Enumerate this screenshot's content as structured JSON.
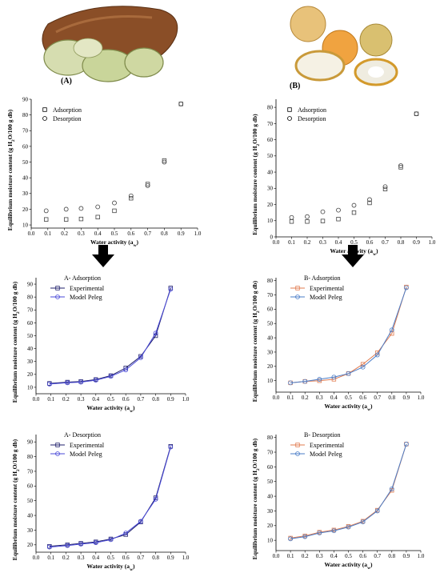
{
  "photos": {
    "left_label": "(A)",
    "right_label": "(B)"
  },
  "colors": {
    "experimental": "#e07b4f",
    "model_peleg": "#4a7cc7",
    "experimental_left": "#1f1f6b",
    "model_left": "#4a4ad8",
    "arrow": "#000000"
  },
  "chart_data": [
    {
      "id": "A-isotherms",
      "type": "scatter",
      "title": "",
      "xlabel": "Water activity (aw)",
      "ylabel": "Equilibrium moisture content (g H2O/100 g db)",
      "xlim": [
        0.0,
        1.0
      ],
      "ylim": [
        8,
        90
      ],
      "xticks": [
        "0.0",
        "0.1",
        "0.2",
        "0.3",
        "0.4",
        "0.5",
        "0.6",
        "0.7",
        "0.8",
        "0.9",
        "1.0"
      ],
      "yticks": [
        10,
        20,
        30,
        40,
        50,
        60,
        70,
        80,
        90
      ],
      "legend_position": "top-left",
      "series": [
        {
          "name": "Adsorption",
          "marker": "square",
          "x": [
            0.09,
            0.21,
            0.3,
            0.4,
            0.5,
            0.6,
            0.7,
            0.8,
            0.9
          ],
          "y": [
            13.5,
            13.5,
            13.8,
            15,
            19,
            27,
            36,
            51,
            87
          ]
        },
        {
          "name": "Desorption",
          "marker": "circle",
          "x": [
            0.09,
            0.21,
            0.3,
            0.4,
            0.5,
            0.6,
            0.7,
            0.8,
            0.9
          ],
          "y": [
            19,
            20,
            20.5,
            21.5,
            24,
            28.5,
            35,
            50,
            87
          ]
        }
      ]
    },
    {
      "id": "B-isotherms",
      "type": "scatter",
      "title": "",
      "xlabel": "Water activity (aw)",
      "ylabel": "Equilibrium moisture content (g H2O/100 g db)",
      "xlim": [
        0.0,
        1.0
      ],
      "ylim": [
        0,
        85
      ],
      "xticks": [
        "0.0",
        "0.1",
        "0.2",
        "0.3",
        "0.4",
        "0.5",
        "0.6",
        "0.7",
        "0.8",
        "0.9",
        "1.0"
      ],
      "yticks": [
        0,
        10,
        20,
        30,
        40,
        50,
        60,
        70,
        80
      ],
      "legend_position": "top-left",
      "series": [
        {
          "name": "Adsorption",
          "marker": "square",
          "x": [
            0.1,
            0.2,
            0.3,
            0.4,
            0.5,
            0.6,
            0.7,
            0.8,
            0.9
          ],
          "y": [
            9.5,
            9.5,
            9.8,
            11,
            15,
            21,
            29.5,
            43,
            76
          ]
        },
        {
          "name": "Desorption",
          "marker": "circle",
          "x": [
            0.1,
            0.2,
            0.3,
            0.4,
            0.5,
            0.6,
            0.7,
            0.8,
            0.9
          ],
          "y": [
            12,
            12.5,
            15.5,
            16.5,
            19.5,
            23,
            31,
            44,
            76
          ]
        }
      ]
    },
    {
      "id": "A-adsorption-peleg",
      "type": "line",
      "title": "A- Adsorption",
      "xlabel": "Water activity (aw)",
      "ylabel": "Equilibrium moisture content (g H2O/100 g db)",
      "xlim": [
        0.0,
        1.0
      ],
      "ylim": [
        5,
        95
      ],
      "xticks": [
        "0.0",
        "0.1",
        "0.2",
        "0.3",
        "0.4",
        "0.5",
        "0.6",
        "0.7",
        "0.8",
        "0.9",
        "1.0"
      ],
      "yticks": [
        10,
        20,
        30,
        40,
        50,
        60,
        70,
        80,
        90
      ],
      "legend_position": "top-left",
      "series": [
        {
          "name": "Experimental",
          "marker": "square",
          "x": [
            0.09,
            0.21,
            0.3,
            0.4,
            0.5,
            0.6,
            0.7,
            0.8,
            0.9
          ],
          "y": [
            13,
            14,
            14.5,
            16,
            19,
            25,
            34,
            50,
            87
          ]
        },
        {
          "name": "Model Peleg",
          "marker": "circle",
          "x": [
            0.09,
            0.21,
            0.3,
            0.4,
            0.5,
            0.6,
            0.7,
            0.8,
            0.9
          ],
          "y": [
            12.5,
            13.5,
            14,
            15.5,
            18.5,
            23.5,
            33,
            52,
            86
          ]
        }
      ]
    },
    {
      "id": "B-adsorption-peleg",
      "type": "line",
      "title": "B- Adsorption",
      "xlabel": "Water activity (aw)",
      "ylabel": "Equilibrium moisture content (g H2O/100 g db)",
      "xlim": [
        0.0,
        1.0
      ],
      "ylim": [
        2,
        82
      ],
      "xticks": [
        "0.0",
        "0.1",
        "0.2",
        "0.3",
        "0.4",
        "0.5",
        "0.6",
        "0.7",
        "0.8",
        "0.9",
        "1.0"
      ],
      "yticks": [
        10,
        20,
        30,
        40,
        50,
        60,
        70,
        80
      ],
      "legend_position": "top-left",
      "series": [
        {
          "name": "Experimental",
          "marker": "square",
          "x": [
            0.1,
            0.2,
            0.3,
            0.4,
            0.5,
            0.6,
            0.7,
            0.8,
            0.9
          ],
          "y": [
            8.5,
            9.5,
            10,
            11,
            15,
            21.5,
            29.5,
            43,
            75.5
          ]
        },
        {
          "name": "Model Peleg",
          "marker": "circle",
          "x": [
            0.1,
            0.2,
            0.3,
            0.4,
            0.5,
            0.6,
            0.7,
            0.8,
            0.9
          ],
          "y": [
            8.5,
            9.5,
            11,
            12.5,
            15,
            19.5,
            28,
            45.5,
            75
          ]
        }
      ]
    },
    {
      "id": "A-desorption-peleg",
      "type": "line",
      "title": "A- Desorption",
      "xlabel": "Water activity (aw)",
      "ylabel": "Equilibrium moisture content (g H2O/100 g db)",
      "xlim": [
        0.0,
        1.0
      ],
      "ylim": [
        15,
        95
      ],
      "xticks": [
        "0.0",
        "0.1",
        "0.2",
        "0.3",
        "0.4",
        "0.5",
        "0.6",
        "0.7",
        "0.8",
        "0.9",
        "1.0"
      ],
      "yticks": [
        20,
        30,
        40,
        50,
        60,
        70,
        80,
        90
      ],
      "legend_position": "top-left",
      "series": [
        {
          "name": "Experimental",
          "marker": "square",
          "x": [
            0.09,
            0.21,
            0.3,
            0.4,
            0.5,
            0.6,
            0.7,
            0.8,
            0.9
          ],
          "y": [
            19,
            20,
            21,
            22,
            24,
            27,
            35.5,
            52,
            87
          ]
        },
        {
          "name": "Model Peleg",
          "marker": "circle",
          "x": [
            0.09,
            0.21,
            0.3,
            0.4,
            0.5,
            0.6,
            0.7,
            0.8,
            0.9
          ],
          "y": [
            18.5,
            19.5,
            20.5,
            21.5,
            23.5,
            28,
            36,
            51,
            86.5
          ]
        }
      ]
    },
    {
      "id": "B-desorption-peleg",
      "type": "line",
      "title": "B- Desorption",
      "xlabel": "Water activity (aw)",
      "ylabel": "Equilibrium moisture content (g H2O/100 g db)",
      "xlim": [
        0.0,
        1.0
      ],
      "ylim": [
        3,
        82
      ],
      "xticks": [
        "0.0",
        "0.1",
        "0.2",
        "0.3",
        "0.4",
        "0.5",
        "0.6",
        "0.7",
        "0.8",
        "0.9",
        "1.0"
      ],
      "yticks": [
        10,
        20,
        30,
        40,
        50,
        60,
        70,
        80
      ],
      "legend_position": "top-left",
      "series": [
        {
          "name": "Experimental",
          "marker": "square",
          "x": [
            0.1,
            0.2,
            0.3,
            0.4,
            0.5,
            0.6,
            0.7,
            0.8,
            0.9
          ],
          "y": [
            11.5,
            13,
            15.5,
            17,
            19.5,
            23,
            30.5,
            44,
            75.5
          ]
        },
        {
          "name": "Model Peleg",
          "marker": "circle",
          "x": [
            0.1,
            0.2,
            0.3,
            0.4,
            0.5,
            0.6,
            0.7,
            0.8,
            0.9
          ],
          "y": [
            11,
            12.5,
            15,
            16.5,
            19,
            22.5,
            30,
            45,
            75.5
          ]
        }
      ]
    }
  ]
}
